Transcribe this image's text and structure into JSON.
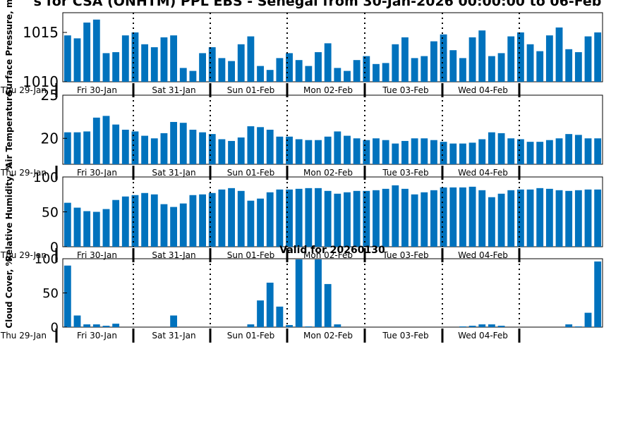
{
  "title": "s for CSA (ONHTM) PPL EBS  - Senegal from 30-Jan-2026 00:00:00 to 06-Feb",
  "subtitle": "Valid for 20260130",
  "colors": {
    "bar": "#0072bd",
    "axis": "#000000",
    "background": "#ffffff"
  },
  "day_labels": [
    "Thu 29-Jan",
    "Fri 30-Jan",
    "Sat 31-Jan",
    "Sun 01-Feb",
    "Mon 02-Feb",
    "Tue 03-Feb",
    "Wed 04-Feb"
  ],
  "chart_data": [
    {
      "type": "bar",
      "ylabel": "Surface Pressure, m",
      "ylim": [
        1010,
        1017
      ],
      "yticks": [
        "1010",
        "1015"
      ],
      "values": [
        1014.7,
        1014.4,
        1016.0,
        1016.3,
        1012.9,
        1013.0,
        1014.7,
        1015.0,
        1013.8,
        1013.5,
        1014.5,
        1014.7,
        1011.4,
        1011.1,
        1012.9,
        1013.5,
        1012.4,
        1012.1,
        1013.8,
        1014.6,
        1011.6,
        1011.2,
        1012.4,
        1012.9,
        1012.2,
        1011.6,
        1013.0,
        1013.9,
        1011.4,
        1011.1,
        1012.2,
        1012.6,
        1011.8,
        1011.9,
        1013.8,
        1014.5,
        1012.4,
        1012.6,
        1014.1,
        1014.8,
        1013.2,
        1012.4,
        1014.5,
        1015.2,
        1012.6,
        1012.9,
        1014.6,
        1015.0,
        1013.8,
        1013.1,
        1014.7,
        1015.5,
        1013.3,
        1013.0,
        1014.6,
        1015.0
      ],
      "grid": false
    },
    {
      "type": "bar",
      "ylabel": "Air Temperature",
      "ylim": [
        17,
        25
      ],
      "yticks": [
        "20",
        "25"
      ],
      "values": [
        20.7,
        20.7,
        20.8,
        22.4,
        22.6,
        21.6,
        21.0,
        20.8,
        20.3,
        20.0,
        20.6,
        21.9,
        21.8,
        21.0,
        20.7,
        20.5,
        19.9,
        19.7,
        20.1,
        21.4,
        21.3,
        21.0,
        20.2,
        20.2,
        19.9,
        19.8,
        19.8,
        20.2,
        20.8,
        20.3,
        20.0,
        19.8,
        20.0,
        19.8,
        19.4,
        19.7,
        20.0,
        20.0,
        19.8,
        19.6,
        19.4,
        19.4,
        19.5,
        19.9,
        20.7,
        20.6,
        20.0,
        19.9,
        19.6,
        19.6,
        19.8,
        20.0,
        20.5,
        20.4,
        20.0,
        20.0
      ],
      "grid": false
    },
    {
      "type": "bar",
      "ylabel": "Relative Humidity, %",
      "ylim": [
        0,
        100
      ],
      "yticks": [
        "0",
        "50",
        "100"
      ],
      "values": [
        63,
        56,
        51,
        50,
        54,
        67,
        72,
        74,
        77,
        75,
        61,
        57,
        62,
        74,
        75,
        77,
        82,
        84,
        80,
        66,
        69,
        78,
        82,
        82,
        83,
        84,
        84,
        80,
        76,
        78,
        80,
        80,
        81,
        83,
        88,
        83,
        75,
        78,
        81,
        85,
        85,
        85,
        86,
        81,
        71,
        76,
        81,
        82,
        82,
        84,
        83,
        81,
        80,
        81,
        82,
        82
      ],
      "grid": false
    },
    {
      "type": "bar",
      "ylabel": "Cloud Cover, %",
      "ylim": [
        0,
        100
      ],
      "yticks": [
        "0",
        "50",
        "100"
      ],
      "values": [
        90,
        17,
        4,
        4,
        2,
        5,
        0,
        0,
        0,
        0,
        0,
        17,
        0,
        0,
        0,
        0,
        0,
        0,
        0,
        4,
        39,
        65,
        30,
        3,
        99,
        1,
        99,
        63,
        4,
        0,
        0,
        0,
        0,
        0,
        0,
        0,
        0,
        0,
        0,
        0,
        0,
        1,
        2,
        4,
        4,
        2,
        0,
        0,
        0,
        0,
        0,
        0,
        4,
        1,
        21,
        96
      ],
      "grid": false
    }
  ]
}
